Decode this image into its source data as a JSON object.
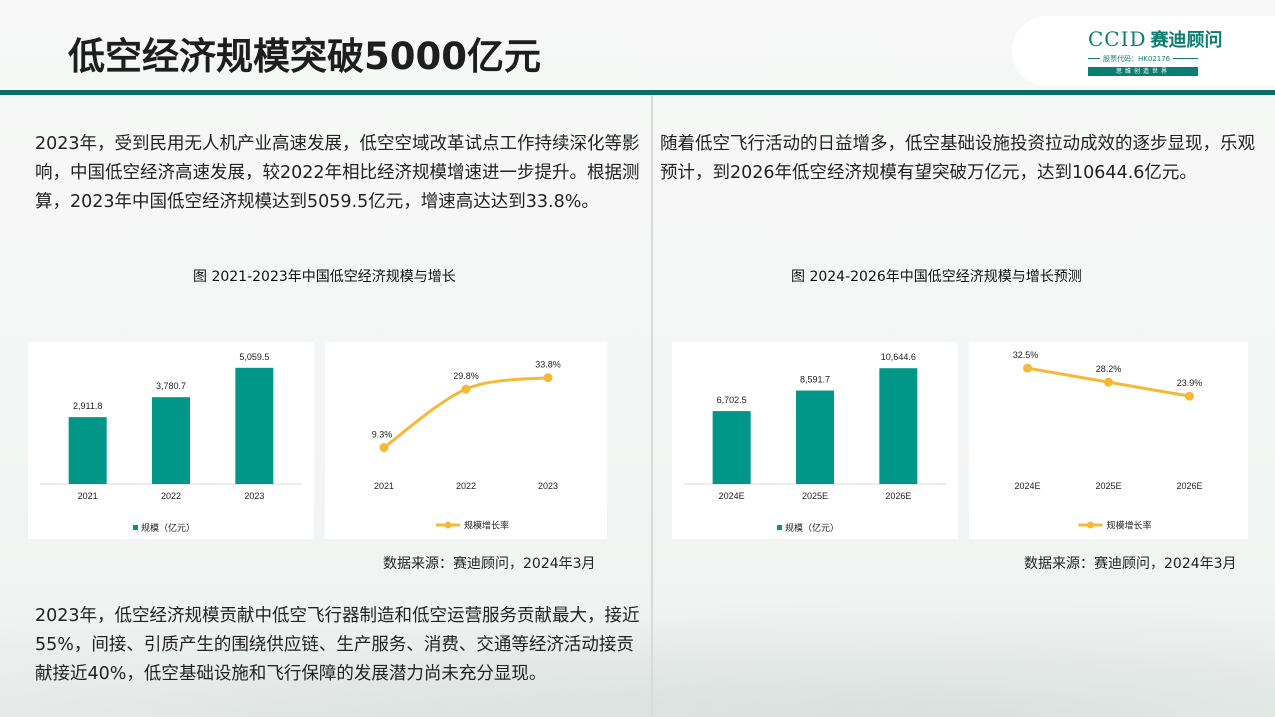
{
  "header": {
    "title": "低空经济规模突破5000亿元",
    "logo": {
      "ccid": "CCID",
      "cn_name": "赛迪顾问",
      "stock_code": "股票代码：HK02176",
      "slogan": "思维创造世界"
    }
  },
  "left": {
    "paragraph": "2023年，受到民用无人机产业高速发展，低空空域改革试点工作持续深化等影响，中国低空经济高速发展，较2022年相比经济规模增速进一步提升。根据测算，2023年中国低空经济规模达到5059.5亿元，增速高达达到33.8%。",
    "caption": "图  2021-2023年中国低空经济规模与增长",
    "source": "数据来源：赛迪顾问，2024年3月",
    "bottom_paragraph": "2023年，低空经济规模贡献中低空飞行器制造和低空运营服务贡献最大，接近55%，间接、引质产生的围绕供应链、生产服务、消费、交通等经济活动接贡献接近40%，低空基础设施和飞行保障的发展潜力尚未充分显现。"
  },
  "right": {
    "paragraph": "随着低空飞行活动的日益增多，低空基础设施投资拉动成效的逐步显现，乐观预计，到2026年低空经济规模有望突破万亿元，达到10644.6亿元。",
    "caption": "图  2024-2026年中国低空经济规模与增长预测",
    "source": "数据来源：赛迪顾问，2024年3月"
  },
  "colors": {
    "bar": "#009688",
    "line": "#f5b93a",
    "accent": "#0b6e62"
  },
  "chart_data": [
    {
      "type": "bar",
      "categories": [
        "2021",
        "2022",
        "2023"
      ],
      "series": [
        {
          "name": "规模（亿元）",
          "values": [
            2911.8,
            3780.7,
            5059.5
          ]
        }
      ],
      "data_labels": [
        "2,911.8",
        "3,780.7",
        "5,059.5"
      ],
      "ylim": [
        0,
        5400
      ],
      "legend": "bottom",
      "grid": false
    },
    {
      "type": "line",
      "categories": [
        "2021",
        "2022",
        "2023"
      ],
      "series": [
        {
          "name": "规模增长率",
          "values": [
            9.3,
            29.8,
            33.8
          ]
        }
      ],
      "data_labels": [
        "9.3%",
        "29.8%",
        "33.8%"
      ],
      "ylim": [
        0,
        40
      ],
      "legend": "bottom",
      "grid": false
    },
    {
      "type": "bar",
      "categories": [
        "2024E",
        "2025E",
        "2026E"
      ],
      "series": [
        {
          "name": "规模（亿元）",
          "values": [
            6702.5,
            8591.7,
            10644.6
          ]
        }
      ],
      "data_labels": [
        "6,702.5",
        "8,591.7",
        "10,644.6"
      ],
      "ylim": [
        0,
        11400
      ],
      "legend": "bottom",
      "grid": false
    },
    {
      "type": "line",
      "categories": [
        "2024E",
        "2025E",
        "2026E"
      ],
      "series": [
        {
          "name": "规模增长率",
          "values": [
            32.5,
            28.2,
            23.9
          ]
        }
      ],
      "data_labels": [
        "32.5%",
        "28.2%",
        "23.9%"
      ],
      "ylim": [
        0,
        35
      ],
      "legend": "bottom",
      "grid": false
    }
  ]
}
